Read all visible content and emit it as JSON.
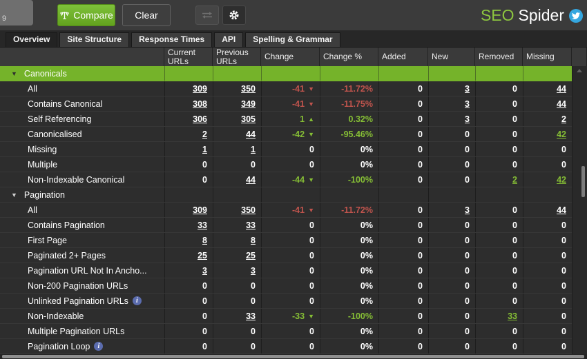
{
  "toolbar": {
    "partial_value": "9",
    "compare_label": "Compare",
    "clear_label": "Clear"
  },
  "brand": {
    "seo": "SEO",
    "spider": "Spider"
  },
  "tabs": [
    {
      "label": "Overview",
      "active": true
    },
    {
      "label": "Site Structure",
      "active": false
    },
    {
      "label": "Response Times",
      "active": false
    },
    {
      "label": "API",
      "active": false
    },
    {
      "label": "Spelling & Grammar",
      "active": false
    }
  ],
  "table": {
    "columns": [
      "",
      "Current URLs",
      "Previous URLs",
      "Change",
      "Change %",
      "Added",
      "New",
      "Removed",
      "Missing"
    ],
    "rows": [
      {
        "type": "section",
        "label": "Canonicals",
        "highlight": true
      },
      {
        "type": "data",
        "label": "All",
        "cells": [
          {
            "v": "309",
            "u": 1
          },
          {
            "v": "350",
            "u": 1
          },
          {
            "v": "-41",
            "tri": "down",
            "c": "red"
          },
          {
            "v": "-11.72%",
            "c": "red"
          },
          {
            "v": "0"
          },
          {
            "v": "3",
            "u": 1
          },
          {
            "v": "0"
          },
          {
            "v": "44",
            "u": 1
          }
        ]
      },
      {
        "type": "data",
        "label": "Contains Canonical",
        "cells": [
          {
            "v": "308",
            "u": 1
          },
          {
            "v": "349",
            "u": 1
          },
          {
            "v": "-41",
            "tri": "down",
            "c": "red"
          },
          {
            "v": "-11.75%",
            "c": "red"
          },
          {
            "v": "0"
          },
          {
            "v": "3",
            "u": 1
          },
          {
            "v": "0"
          },
          {
            "v": "44",
            "u": 1
          }
        ]
      },
      {
        "type": "data",
        "label": "Self Referencing",
        "cells": [
          {
            "v": "306",
            "u": 1
          },
          {
            "v": "305",
            "u": 1
          },
          {
            "v": "1",
            "tri": "up",
            "c": "green"
          },
          {
            "v": "0.32%",
            "c": "green"
          },
          {
            "v": "0"
          },
          {
            "v": "3",
            "u": 1
          },
          {
            "v": "0"
          },
          {
            "v": "2",
            "u": 1
          }
        ]
      },
      {
        "type": "data",
        "label": "Canonicalised",
        "cells": [
          {
            "v": "2",
            "u": 1
          },
          {
            "v": "44",
            "u": 1
          },
          {
            "v": "-42",
            "tri": "down",
            "c": "green"
          },
          {
            "v": "-95.46%",
            "c": "green"
          },
          {
            "v": "0"
          },
          {
            "v": "0"
          },
          {
            "v": "0"
          },
          {
            "v": "42",
            "u": 1,
            "c": "green"
          }
        ]
      },
      {
        "type": "data",
        "label": "Missing",
        "cells": [
          {
            "v": "1",
            "u": 1
          },
          {
            "v": "1",
            "u": 1
          },
          {
            "v": "0"
          },
          {
            "v": "0%"
          },
          {
            "v": "0"
          },
          {
            "v": "0"
          },
          {
            "v": "0"
          },
          {
            "v": "0"
          }
        ]
      },
      {
        "type": "data",
        "label": "Multiple",
        "cells": [
          {
            "v": "0"
          },
          {
            "v": "0"
          },
          {
            "v": "0"
          },
          {
            "v": "0%"
          },
          {
            "v": "0"
          },
          {
            "v": "0"
          },
          {
            "v": "0"
          },
          {
            "v": "0"
          }
        ]
      },
      {
        "type": "data",
        "label": "Non-Indexable Canonical",
        "cells": [
          {
            "v": "0"
          },
          {
            "v": "44",
            "u": 1
          },
          {
            "v": "-44",
            "tri": "down",
            "c": "green"
          },
          {
            "v": "-100%",
            "c": "green"
          },
          {
            "v": "0"
          },
          {
            "v": "0"
          },
          {
            "v": "2",
            "u": 1,
            "c": "green"
          },
          {
            "v": "42",
            "u": 1,
            "c": "green"
          }
        ]
      },
      {
        "type": "section",
        "label": "Pagination",
        "highlight": false
      },
      {
        "type": "data",
        "label": "All",
        "cells": [
          {
            "v": "309",
            "u": 1
          },
          {
            "v": "350",
            "u": 1
          },
          {
            "v": "-41",
            "tri": "down",
            "c": "red"
          },
          {
            "v": "-11.72%",
            "c": "red"
          },
          {
            "v": "0"
          },
          {
            "v": "3",
            "u": 1
          },
          {
            "v": "0"
          },
          {
            "v": "44",
            "u": 1
          }
        ]
      },
      {
        "type": "data",
        "label": "Contains Pagination",
        "cells": [
          {
            "v": "33",
            "u": 1
          },
          {
            "v": "33",
            "u": 1
          },
          {
            "v": "0"
          },
          {
            "v": "0%"
          },
          {
            "v": "0"
          },
          {
            "v": "0"
          },
          {
            "v": "0"
          },
          {
            "v": "0"
          }
        ]
      },
      {
        "type": "data",
        "label": "First Page",
        "cells": [
          {
            "v": "8",
            "u": 1
          },
          {
            "v": "8",
            "u": 1
          },
          {
            "v": "0"
          },
          {
            "v": "0%"
          },
          {
            "v": "0"
          },
          {
            "v": "0"
          },
          {
            "v": "0"
          },
          {
            "v": "0"
          }
        ]
      },
      {
        "type": "data",
        "label": "Paginated 2+ Pages",
        "cells": [
          {
            "v": "25",
            "u": 1
          },
          {
            "v": "25",
            "u": 1
          },
          {
            "v": "0"
          },
          {
            "v": "0%"
          },
          {
            "v": "0"
          },
          {
            "v": "0"
          },
          {
            "v": "0"
          },
          {
            "v": "0"
          }
        ]
      },
      {
        "type": "data",
        "label": "Pagination URL Not In Ancho...",
        "cells": [
          {
            "v": "3",
            "u": 1
          },
          {
            "v": "3",
            "u": 1
          },
          {
            "v": "0"
          },
          {
            "v": "0%"
          },
          {
            "v": "0"
          },
          {
            "v": "0"
          },
          {
            "v": "0"
          },
          {
            "v": "0"
          }
        ]
      },
      {
        "type": "data",
        "label": "Non-200 Pagination URLs",
        "cells": [
          {
            "v": "0"
          },
          {
            "v": "0"
          },
          {
            "v": "0"
          },
          {
            "v": "0%"
          },
          {
            "v": "0"
          },
          {
            "v": "0"
          },
          {
            "v": "0"
          },
          {
            "v": "0"
          }
        ]
      },
      {
        "type": "data",
        "label": "Unlinked Pagination URLs",
        "info": true,
        "cells": [
          {
            "v": "0"
          },
          {
            "v": "0"
          },
          {
            "v": "0"
          },
          {
            "v": "0%"
          },
          {
            "v": "0"
          },
          {
            "v": "0"
          },
          {
            "v": "0"
          },
          {
            "v": "0"
          }
        ]
      },
      {
        "type": "data",
        "label": "Non-Indexable",
        "cells": [
          {
            "v": "0"
          },
          {
            "v": "33",
            "u": 1
          },
          {
            "v": "-33",
            "tri": "down",
            "c": "green"
          },
          {
            "v": "-100%",
            "c": "green"
          },
          {
            "v": "0"
          },
          {
            "v": "0"
          },
          {
            "v": "33",
            "u": 1,
            "c": "green"
          },
          {
            "v": "0"
          }
        ]
      },
      {
        "type": "data",
        "label": "Multiple Pagination URLs",
        "cells": [
          {
            "v": "0"
          },
          {
            "v": "0"
          },
          {
            "v": "0"
          },
          {
            "v": "0%"
          },
          {
            "v": "0"
          },
          {
            "v": "0"
          },
          {
            "v": "0"
          },
          {
            "v": "0"
          }
        ]
      },
      {
        "type": "data",
        "label": "Pagination Loop",
        "info": true,
        "cells": [
          {
            "v": "0"
          },
          {
            "v": "0"
          },
          {
            "v": "0"
          },
          {
            "v": "0%"
          },
          {
            "v": "0"
          },
          {
            "v": "0"
          },
          {
            "v": "0"
          },
          {
            "v": "0"
          }
        ]
      }
    ]
  },
  "colors": {
    "section_green": "#75b32a",
    "accent_green": "#8dc63f",
    "negative_red": "#c0544d",
    "positive_green": "#85bd35",
    "twitter_blue": "#35a7e0",
    "info_blue": "#5b6cae"
  }
}
